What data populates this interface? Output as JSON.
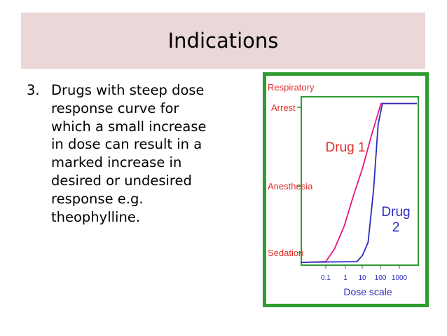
{
  "slide": {
    "title": "Indications",
    "item_number": "3.",
    "item_lines": [
      "Drugs with steep dose",
      "response curve for",
      "which a small increase",
      "in dose can result in a",
      "marked increase in",
      "desired or undesired",
      "response e.g.",
      "theophylline."
    ]
  },
  "chart_data": {
    "type": "line",
    "xlabel": "Dose scale",
    "x_scale": "log",
    "x_ticks": [
      "0.1",
      "1",
      "10",
      "100",
      "1000"
    ],
    "y_ticks": [
      "Respiratory",
      "Arrest",
      "Anesthesia",
      "Sedation"
    ],
    "colors": {
      "drug1": "#e8177e",
      "drug2": "#2b2bbf",
      "axis_labels": "#e0302a",
      "border": "#2f9c31"
    },
    "series": [
      {
        "name": "Drug 1",
        "label_lines": [
          "Drug 1"
        ],
        "color": "#e8177e",
        "points": [
          [
            0.1,
            0.0
          ],
          [
            0.3,
            0.08
          ],
          [
            1,
            0.22
          ],
          [
            3,
            0.4
          ],
          [
            10,
            0.58
          ],
          [
            30,
            0.78
          ],
          [
            100,
            0.98
          ]
        ]
      },
      {
        "name": "Drug 2",
        "label_lines": [
          "Drug",
          "2"
        ],
        "color": "#2b2bbf",
        "points": [
          [
            5,
            0.0
          ],
          [
            10,
            0.04
          ],
          [
            20,
            0.12
          ],
          [
            40,
            0.45
          ],
          [
            70,
            0.85
          ],
          [
            120,
            0.98
          ]
        ]
      }
    ]
  }
}
